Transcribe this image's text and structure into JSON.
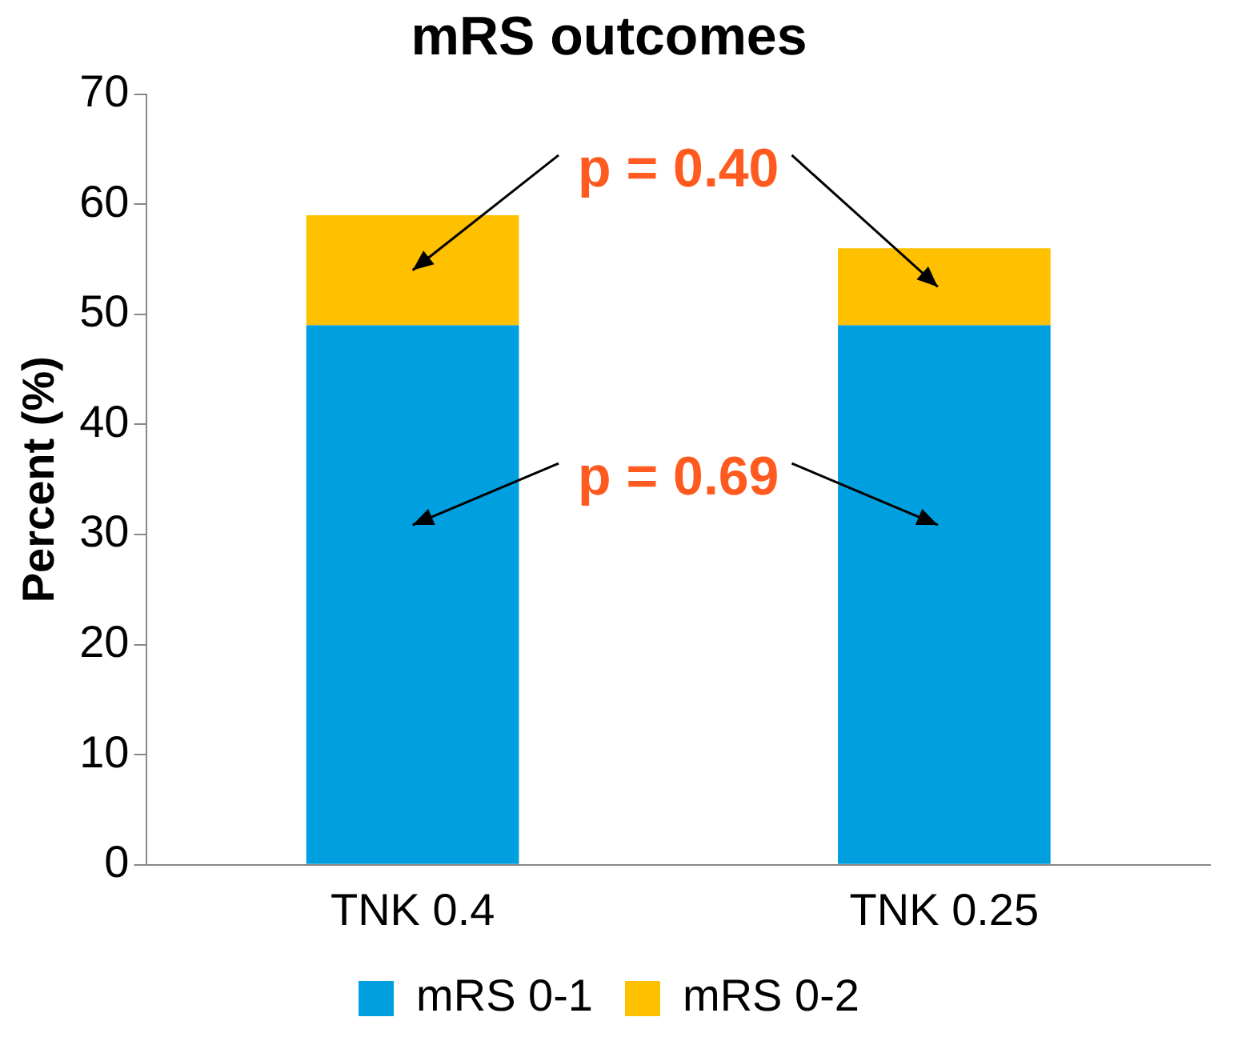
{
  "chart_data": {
    "type": "bar",
    "title": "mRS outcomes",
    "ylabel": "Percent (%)",
    "categories": [
      "TNK 0.4",
      "TNK 0.25"
    ],
    "stacked": true,
    "series": [
      {
        "name": "mRS 0-1",
        "color": "#009fdf",
        "values": [
          49,
          49
        ]
      },
      {
        "name": "mRS 0-2",
        "color": "#ffc000",
        "values": [
          10,
          7
        ]
      }
    ],
    "ylim": [
      0,
      70
    ],
    "yticks": [
      0,
      10,
      20,
      30,
      40,
      50,
      60,
      70
    ],
    "grid": false,
    "legend": "bottom",
    "annotations": [
      "p = 0.40",
      "p = 0.69"
    ]
  }
}
